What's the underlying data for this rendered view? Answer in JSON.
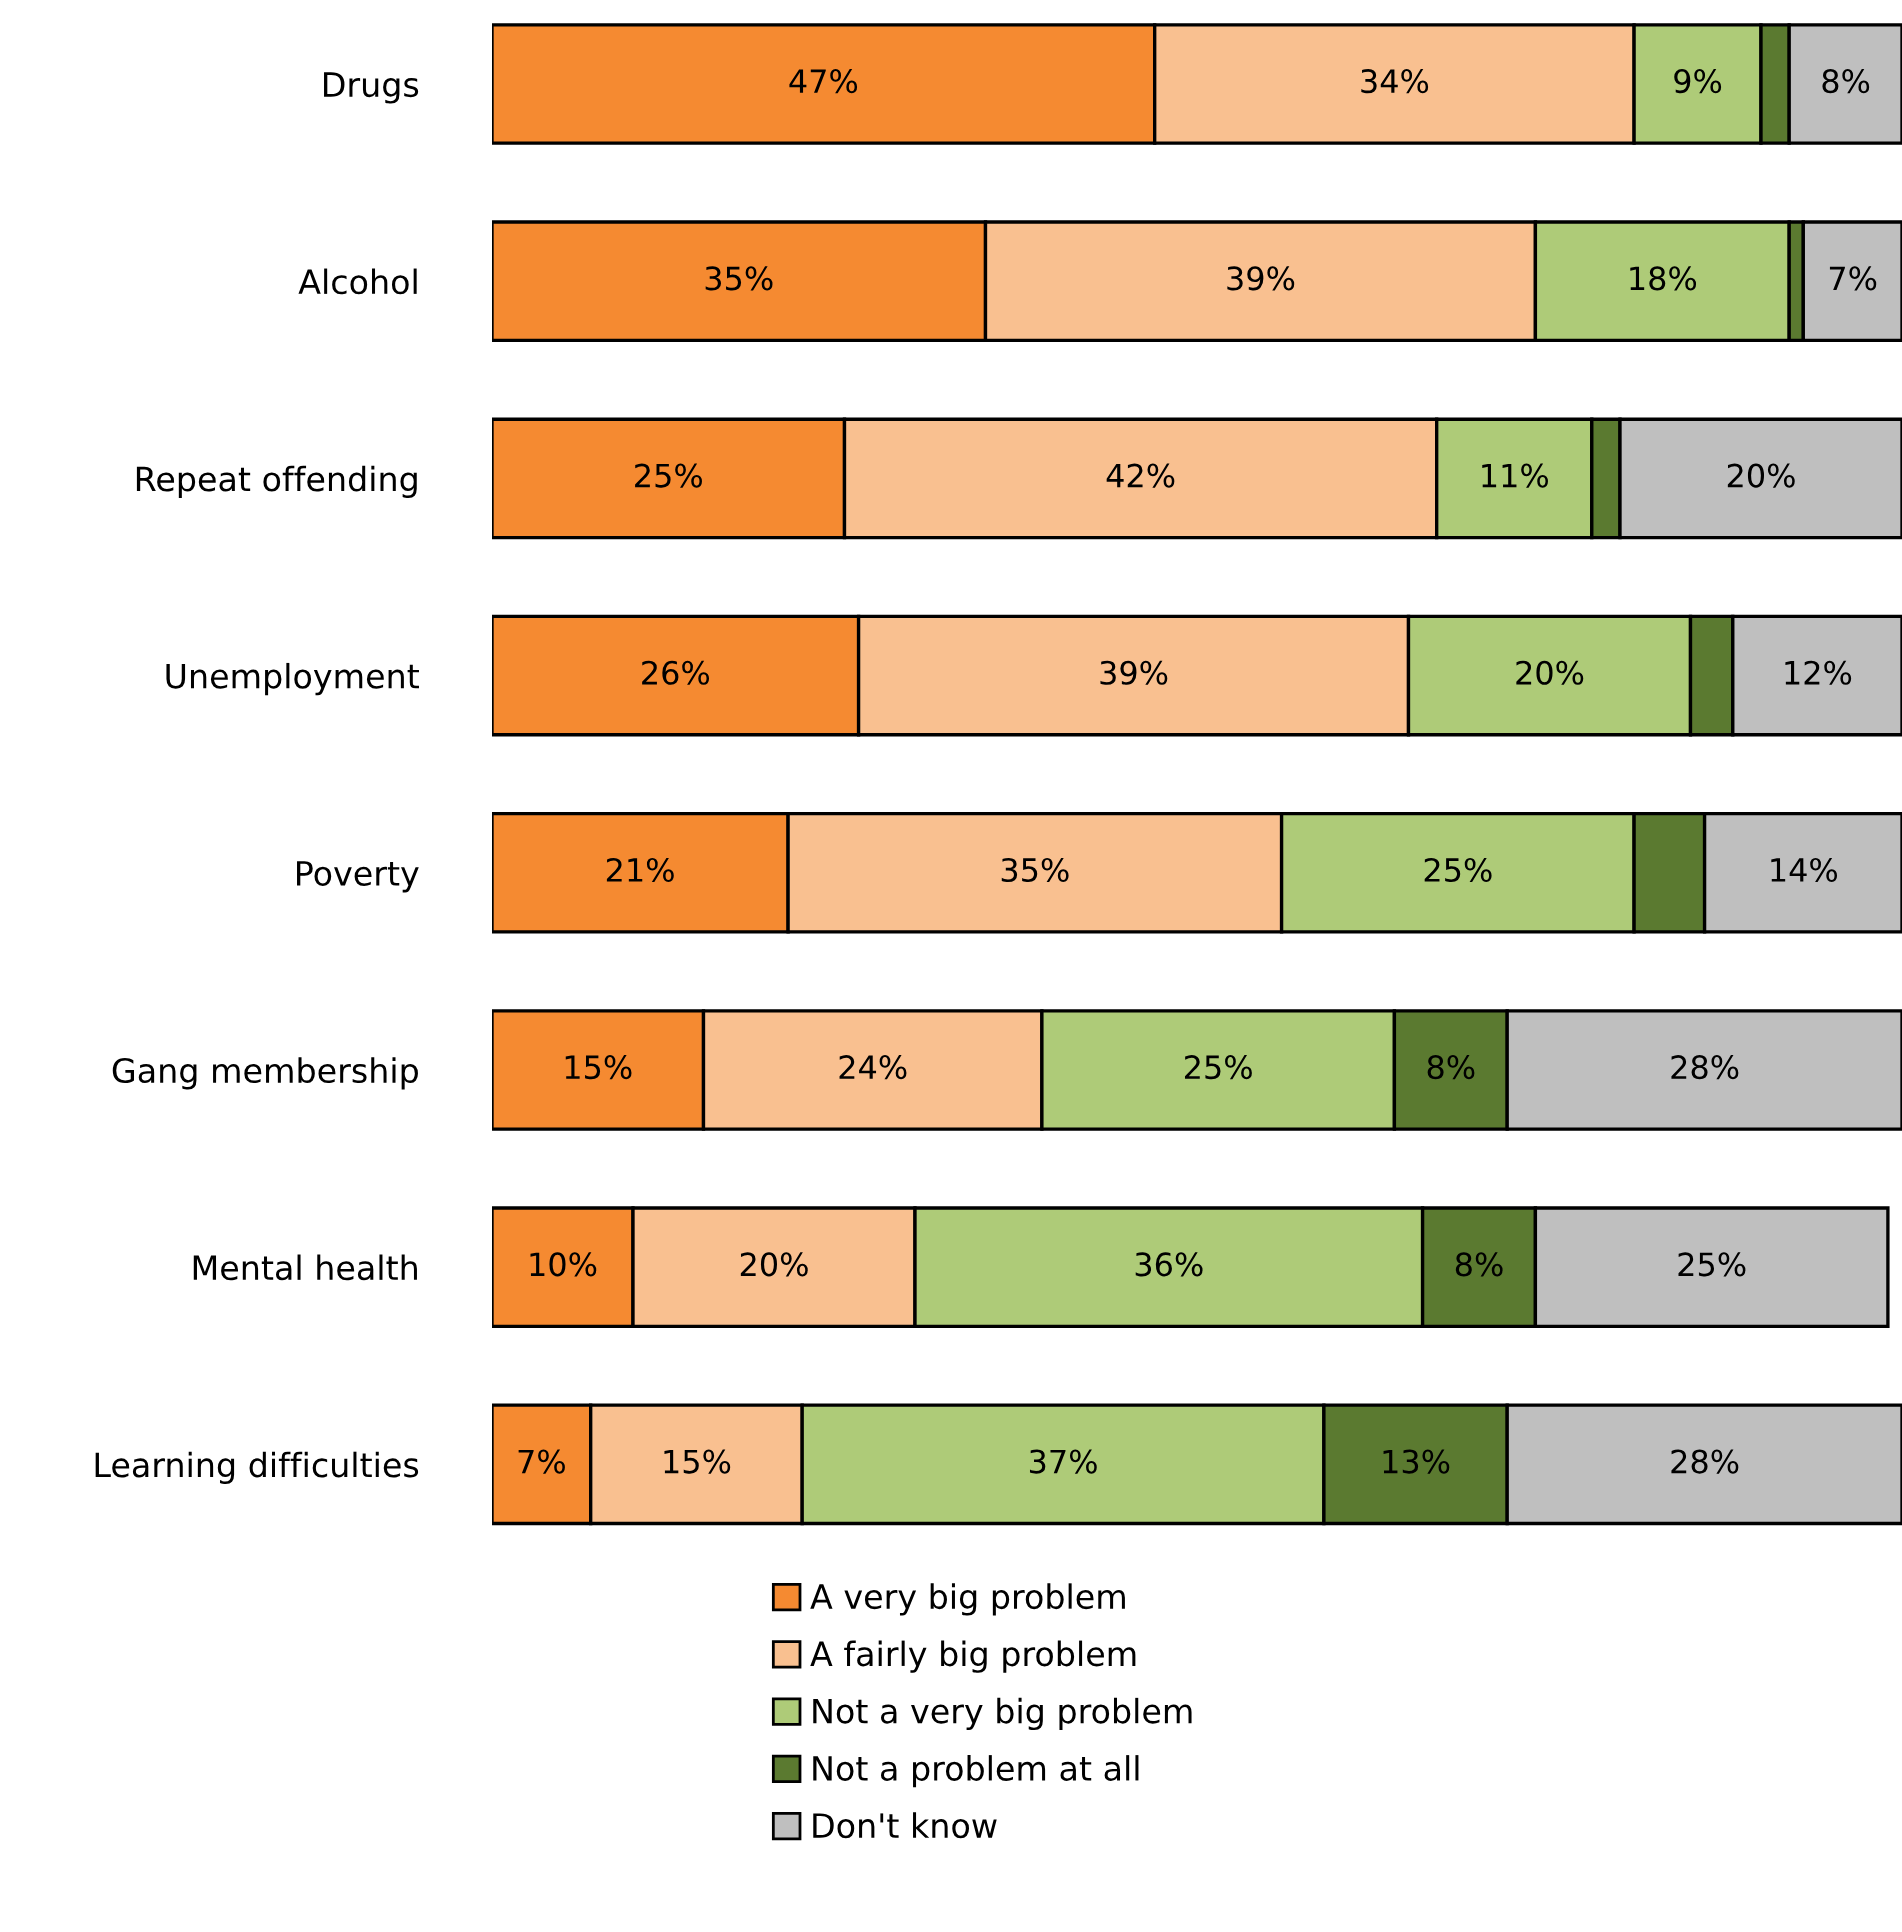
{
  "chart_data": {
    "type": "bar",
    "orientation": "horizontal",
    "stacked": true,
    "categories": [
      "Drugs",
      "Alcohol",
      "Repeat offending",
      "Unemployment",
      "Poverty",
      "Gang membership",
      "Mental health",
      "Learning difficulties"
    ],
    "series": [
      {
        "name": "A very big problem",
        "color": "#f58a31",
        "values": [
          47,
          35,
          25,
          26,
          21,
          15,
          10,
          7
        ],
        "value_labels": [
          "47%",
          "35%",
          "25%",
          "26%",
          "21%",
          "15%",
          "10%",
          "7%"
        ]
      },
      {
        "name": "A fairly big problem",
        "color": "#f9c090",
        "values": [
          34,
          39,
          42,
          39,
          35,
          24,
          20,
          15
        ],
        "value_labels": [
          "34%",
          "39%",
          "42%",
          "39%",
          "35%",
          "24%",
          "20%",
          "15%"
        ]
      },
      {
        "name": "Not a very big problem",
        "color": "#aecb78",
        "values": [
          9,
          18,
          11,
          20,
          25,
          25,
          36,
          37
        ],
        "value_labels": [
          "9%",
          "18%",
          "11%",
          "20%",
          "25%",
          "25%",
          "36%",
          "37%"
        ]
      },
      {
        "name": "Not a problem at all",
        "color": "#5b7a30",
        "values": [
          2,
          1,
          2,
          3,
          5,
          8,
          8,
          13
        ],
        "value_labels": [
          null,
          null,
          null,
          null,
          null,
          "8%",
          "8%",
          "13%"
        ]
      },
      {
        "name": "Don't know",
        "color": "#bfbfbf",
        "values": [
          8,
          7,
          20,
          12,
          14,
          28,
          25,
          28
        ],
        "value_labels": [
          "8%",
          "7%",
          "20%",
          "12%",
          "14%",
          "28%",
          "25%",
          "28%"
        ]
      }
    ],
    "xlim": [
      0,
      100
    ],
    "legend": "bottom",
    "grid": false,
    "tick_labels": "y"
  }
}
